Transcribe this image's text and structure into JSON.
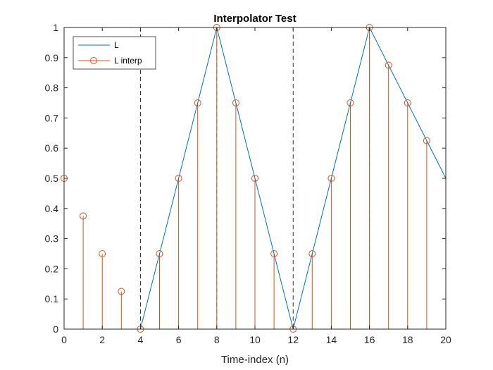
{
  "chart_data": {
    "type": "line",
    "title": "Interpolator Test",
    "xlabel": "Time-index (n)",
    "ylabel": "",
    "xlim": [
      0,
      20
    ],
    "ylim": [
      0,
      1
    ],
    "xticks": [
      "0",
      "2",
      "4",
      "6",
      "8",
      "10",
      "12",
      "14",
      "16",
      "18",
      "20"
    ],
    "yticks": [
      "0",
      "0.1",
      "0.2",
      "0.3",
      "0.4",
      "0.5",
      "0.6",
      "0.7",
      "0.8",
      "0.9",
      "1"
    ],
    "grid": false,
    "legend_position": "top-left",
    "vertical_markers": [
      4,
      8,
      12,
      16
    ],
    "series": [
      {
        "name": "L",
        "style": "line",
        "color": "#0072BD",
        "x": [
          4,
          8,
          12,
          16,
          20
        ],
        "y": [
          0,
          1,
          0,
          1,
          0.5
        ]
      },
      {
        "name": "L interp",
        "style": "stem",
        "color": "#D95319",
        "x": [
          0,
          1,
          2,
          3,
          4,
          5,
          6,
          7,
          8,
          9,
          10,
          11,
          12,
          13,
          14,
          15,
          16,
          17,
          18,
          19
        ],
        "y": [
          0.5,
          0.375,
          0.25,
          0.125,
          0,
          0.25,
          0.5,
          0.75,
          1,
          0.75,
          0.5,
          0.25,
          0,
          0.25,
          0.5,
          0.75,
          1,
          0.875,
          0.75,
          0.625
        ]
      }
    ]
  }
}
